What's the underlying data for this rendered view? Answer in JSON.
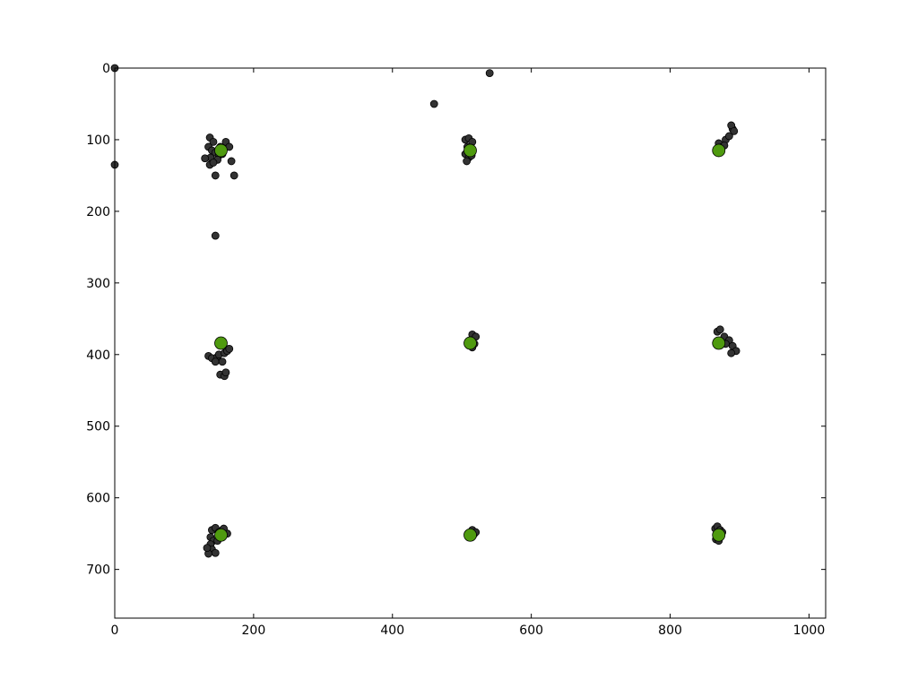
{
  "chart_data": {
    "type": "scatter",
    "title": "",
    "xlabel": "",
    "ylabel": "",
    "xlim": [
      0,
      1024
    ],
    "ylim": [
      768,
      0
    ],
    "y_inverted": true,
    "grid": false,
    "legend": "none",
    "xticks": [
      0,
      200,
      400,
      600,
      800,
      1000
    ],
    "yticks": [
      0,
      100,
      200,
      300,
      400,
      500,
      600,
      700
    ],
    "series": [
      {
        "color": "#333333",
        "points": [
          [
            0,
            0
          ],
          [
            0,
            135
          ],
          [
            460,
            50
          ],
          [
            540,
            7
          ],
          [
            137,
            97
          ],
          [
            142,
            103
          ],
          [
            135,
            110
          ],
          [
            140,
            115
          ],
          [
            145,
            118
          ],
          [
            150,
            122
          ],
          [
            138,
            125
          ],
          [
            130,
            126
          ],
          [
            148,
            128
          ],
          [
            152,
            110
          ],
          [
            160,
            103
          ],
          [
            165,
            110
          ],
          [
            168,
            130
          ],
          [
            137,
            135
          ],
          [
            142,
            132
          ],
          [
            155,
            120
          ],
          [
            145,
            150
          ],
          [
            172,
            150
          ],
          [
            145,
            234
          ],
          [
            505,
            100
          ],
          [
            510,
            98
          ],
          [
            515,
            103
          ],
          [
            508,
            110
          ],
          [
            512,
            115
          ],
          [
            505,
            120
          ],
          [
            510,
            125
          ],
          [
            507,
            130
          ],
          [
            514,
            122
          ],
          [
            870,
            105
          ],
          [
            875,
            110
          ],
          [
            880,
            100
          ],
          [
            885,
            95
          ],
          [
            890,
            85
          ],
          [
            888,
            80
          ],
          [
            892,
            88
          ],
          [
            878,
            108
          ],
          [
            135,
            402
          ],
          [
            140,
            405
          ],
          [
            148,
            403
          ],
          [
            145,
            410
          ],
          [
            150,
            400
          ],
          [
            158,
            398
          ],
          [
            162,
            395
          ],
          [
            165,
            392
          ],
          [
            155,
            410
          ],
          [
            152,
            428
          ],
          [
            158,
            430
          ],
          [
            160,
            425
          ],
          [
            515,
            372
          ],
          [
            520,
            375
          ],
          [
            512,
            380
          ],
          [
            518,
            385
          ],
          [
            515,
            390
          ],
          [
            868,
            368
          ],
          [
            872,
            365
          ],
          [
            878,
            375
          ],
          [
            885,
            380
          ],
          [
            890,
            388
          ],
          [
            895,
            395
          ],
          [
            888,
            398
          ],
          [
            880,
            385
          ],
          [
            140,
            645
          ],
          [
            145,
            642
          ],
          [
            150,
            648
          ],
          [
            155,
            645
          ],
          [
            162,
            650
          ],
          [
            138,
            655
          ],
          [
            142,
            660
          ],
          [
            138,
            665
          ],
          [
            140,
            672
          ],
          [
            135,
            678
          ],
          [
            145,
            677
          ],
          [
            133,
            670
          ],
          [
            148,
            660
          ],
          [
            157,
            643
          ],
          [
            515,
            645
          ],
          [
            518,
            650
          ],
          [
            520,
            648
          ],
          [
            516,
            653
          ],
          [
            865,
            643
          ],
          [
            868,
            640
          ],
          [
            872,
            645
          ],
          [
            875,
            648
          ],
          [
            868,
            652
          ],
          [
            866,
            658
          ],
          [
            870,
            660
          ]
        ]
      },
      {
        "color": "#4f9a0f",
        "points": [
          [
            153,
            115
          ],
          [
            512,
            115
          ],
          [
            870,
            115
          ],
          [
            153,
            384
          ],
          [
            512,
            384
          ],
          [
            870,
            384
          ],
          [
            153,
            652
          ],
          [
            512,
            652
          ],
          [
            870,
            652
          ]
        ]
      }
    ]
  }
}
